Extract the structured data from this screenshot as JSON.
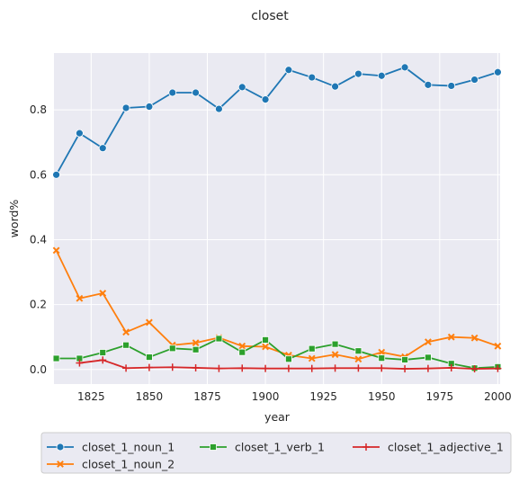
{
  "chart_data": {
    "type": "line",
    "title": "closet",
    "xlabel": "year",
    "ylabel": "word%",
    "xlim": [
      1809,
      2001
    ],
    "ylim": [
      -0.045,
      0.975
    ],
    "xticks": [
      1825,
      1850,
      1875,
      1900,
      1925,
      1950,
      1975,
      2000
    ],
    "yticks": [
      0.0,
      0.2,
      0.4,
      0.6,
      0.8
    ],
    "ytick_labels": [
      "0.0",
      "0.2",
      "0.4",
      "0.6",
      "0.8"
    ],
    "grid": true,
    "legend_position": "bottom",
    "x": [
      1810,
      1820,
      1830,
      1840,
      1850,
      1860,
      1870,
      1880,
      1890,
      1900,
      1910,
      1920,
      1930,
      1940,
      1950,
      1960,
      1970,
      1980,
      1990,
      2000
    ],
    "series": [
      {
        "name": "closet_1_noun_1",
        "color": "#1f77b4",
        "marker": "circle",
        "values": [
          0.6,
          0.728,
          0.682,
          0.806,
          0.81,
          0.853,
          0.853,
          0.803,
          0.87,
          0.832,
          0.923,
          0.9,
          0.872,
          0.911,
          0.905,
          0.931,
          0.877,
          0.874,
          0.893,
          0.916
        ]
      },
      {
        "name": "closet_1_noun_2",
        "color": "#ff7f0e",
        "marker": "x",
        "values": [
          0.367,
          0.219,
          0.235,
          0.115,
          0.145,
          0.075,
          0.082,
          0.098,
          0.072,
          0.07,
          0.044,
          0.034,
          0.046,
          0.032,
          0.053,
          0.039,
          0.085,
          0.1,
          0.097,
          0.072
        ]
      },
      {
        "name": "closet_1_verb_1",
        "color": "#2ca02c",
        "marker": "square",
        "values": [
          0.034,
          0.034,
          0.052,
          0.075,
          0.038,
          0.065,
          0.061,
          0.095,
          0.053,
          0.091,
          0.032,
          0.064,
          0.078,
          0.057,
          0.035,
          0.03,
          0.037,
          0.018,
          0.004,
          0.008
        ]
      },
      {
        "name": "closet_1_adjective_1",
        "color": "#d62728",
        "marker": "plus",
        "values": [
          null,
          0.02,
          0.029,
          0.004,
          0.006,
          0.007,
          0.005,
          0.003,
          0.004,
          0.003,
          0.003,
          0.003,
          0.004,
          0.004,
          0.004,
          0.002,
          0.003,
          0.005,
          0.002,
          0.003
        ]
      }
    ]
  }
}
